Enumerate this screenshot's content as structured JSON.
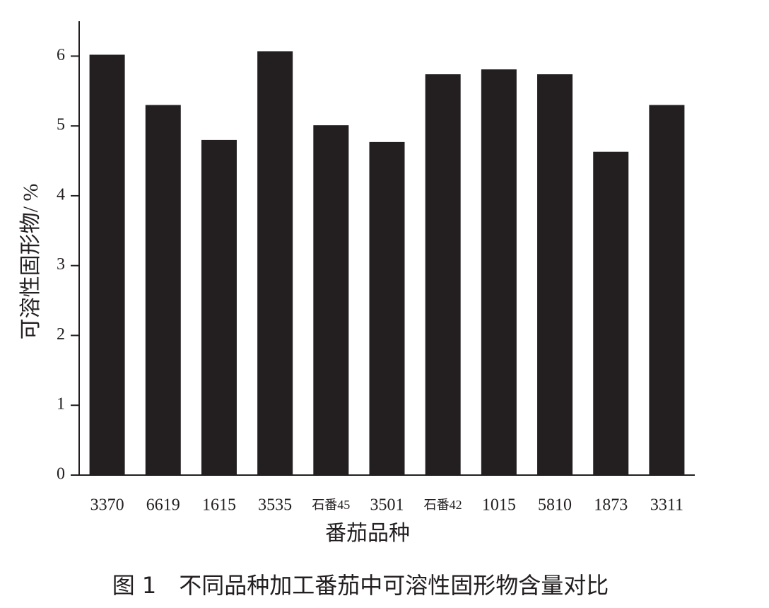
{
  "chart_data": {
    "type": "bar",
    "caption": "图 1　不同品种加工番茄中可溶性固形物含量对比",
    "x_label": "番茄品种",
    "y_label": "可溶性固形物/ %",
    "categories": [
      "3370",
      "6619",
      "1615",
      "3535",
      "石番45",
      "3501",
      "石番42",
      "1015",
      "5810",
      "1873",
      "3311"
    ],
    "values": [
      6.02,
      5.3,
      4.8,
      6.07,
      5.01,
      4.77,
      5.74,
      5.81,
      5.74,
      4.63,
      5.3
    ],
    "color": "#231f20",
    "ylim": [
      0,
      6.5
    ],
    "yticks": [
      0,
      1,
      2,
      3,
      4,
      5,
      6
    ]
  }
}
